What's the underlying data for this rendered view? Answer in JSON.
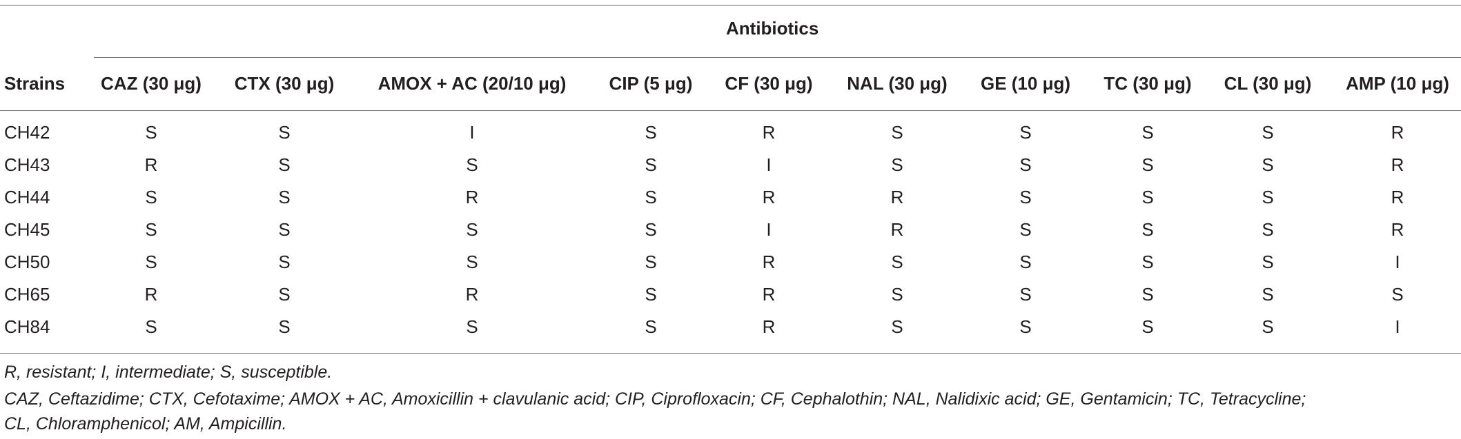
{
  "table": {
    "group_header": "Antibiotics",
    "columns": [
      "Strains",
      "CAZ (30 μg)",
      "CTX (30 μg)",
      "AMOX + AC (20/10 μg)",
      "CIP (5 μg)",
      "CF (30 μg)",
      "NAL (30 μg)",
      "GE (10 μg)",
      "TC (30 μg)",
      "CL (30 μg)",
      "AMP (10 μg)"
    ],
    "rows": [
      [
        "CH42",
        "S",
        "S",
        "I",
        "S",
        "R",
        "S",
        "S",
        "S",
        "S",
        "R"
      ],
      [
        "CH43",
        "R",
        "S",
        "S",
        "S",
        "I",
        "S",
        "S",
        "S",
        "S",
        "R"
      ],
      [
        "CH44",
        "S",
        "S",
        "R",
        "S",
        "R",
        "R",
        "S",
        "S",
        "S",
        "R"
      ],
      [
        "CH45",
        "S",
        "S",
        "S",
        "S",
        "I",
        "R",
        "S",
        "S",
        "S",
        "R"
      ],
      [
        "CH50",
        "S",
        "S",
        "S",
        "S",
        "R",
        "S",
        "S",
        "S",
        "S",
        "I"
      ],
      [
        "CH65",
        "R",
        "S",
        "R",
        "S",
        "R",
        "S",
        "S",
        "S",
        "S",
        "S"
      ],
      [
        "CH84",
        "S",
        "S",
        "S",
        "S",
        "R",
        "S",
        "S",
        "S",
        "S",
        "I"
      ]
    ]
  },
  "footnotes": [
    "R, resistant; I, intermediate; S, susceptible.",
    "CAZ, Ceftazidime; CTX, Cefotaxime; AMOX + AC, Amoxicillin + clavulanic acid; CIP, Ciprofloxacin; CF, Cephalothin; NAL, Nalidixic acid; GE, Gentamicin; TC, Tetracycline;",
    "CL, Chloramphenicol; AM, Ampicillin."
  ]
}
